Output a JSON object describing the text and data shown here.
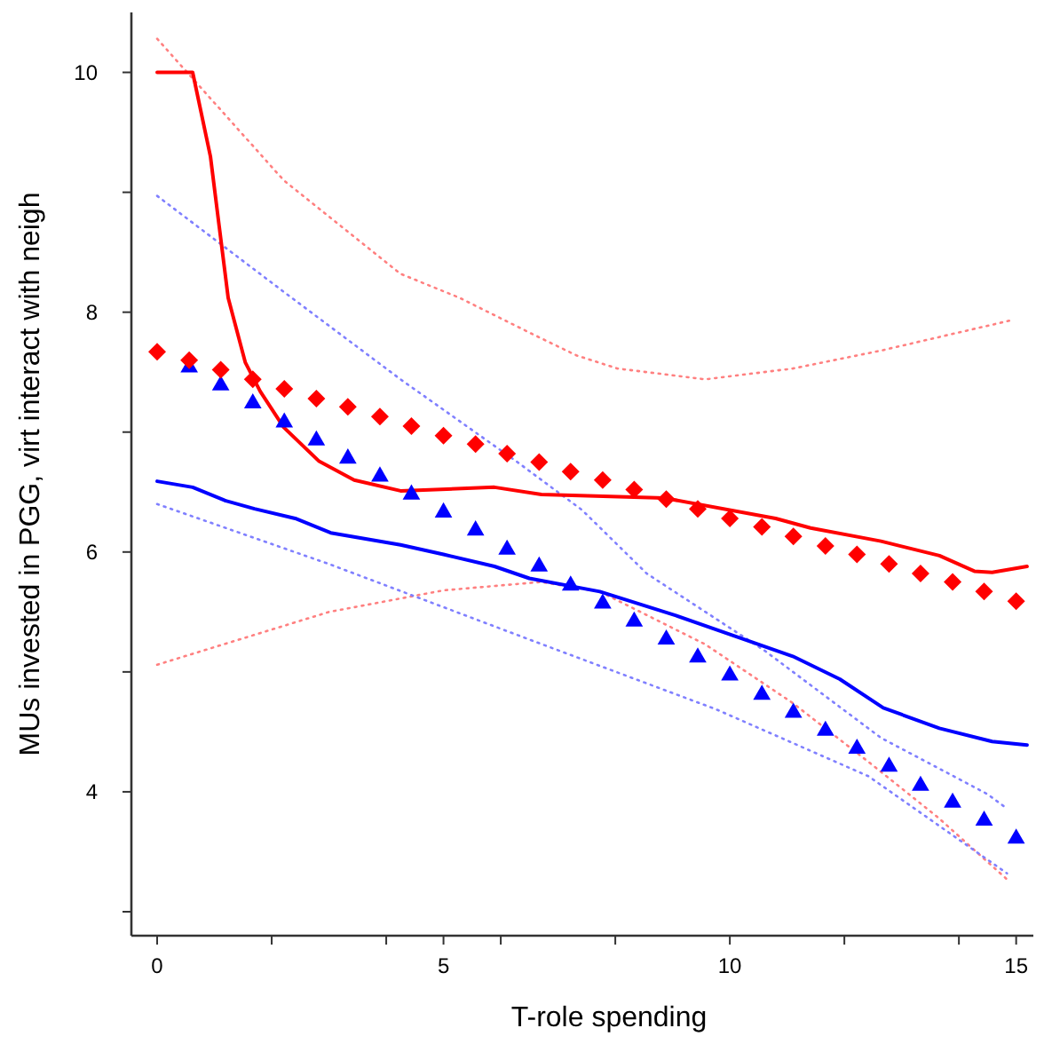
{
  "chart_data": {
    "type": "line",
    "xlabel": "T-role spending",
    "ylabel": "MUs invested in PGG, virt interact with neigh",
    "xlim": [
      -0.45,
      15.3
    ],
    "ylim": [
      2.8,
      10.5
    ],
    "xticks": [
      {
        "value": 0,
        "label": "0"
      },
      {
        "value": 2,
        "label": null
      },
      {
        "value": 4,
        "label": null
      },
      {
        "value": 5,
        "label": "5"
      },
      {
        "value": 6,
        "label": null
      },
      {
        "value": 8,
        "label": null
      },
      {
        "value": 10,
        "label": "10"
      },
      {
        "value": 12,
        "label": null
      },
      {
        "value": 14,
        "label": null
      },
      {
        "value": 15,
        "label": "15"
      }
    ],
    "yticks": [
      {
        "value": 3,
        "label": null
      },
      {
        "value": 4,
        "label": "4"
      },
      {
        "value": 5,
        "label": null
      },
      {
        "value": 6,
        "label": "6"
      },
      {
        "value": 7,
        "label": null
      },
      {
        "value": 8,
        "label": "8"
      },
      {
        "value": 9,
        "label": null
      },
      {
        "value": 10,
        "label": "10"
      }
    ],
    "grid": false,
    "series": [
      {
        "color": "#ff8080",
        "line_style": "dotted",
        "marker": "none",
        "x": [
          0,
          2.21,
          4.25,
          5.28,
          6.5,
          7.32,
          8.04,
          9.57,
          11.1,
          12.64,
          14.89
        ],
        "values": [
          10.28,
          9.1,
          8.32,
          8.12,
          7.83,
          7.64,
          7.53,
          7.44,
          7.53,
          7.68,
          7.93
        ]
      },
      {
        "color": "#ff8080",
        "line_style": "dotted",
        "marker": "none",
        "x": [
          0,
          3,
          5,
          6.7,
          7.73,
          9.57,
          11.1,
          12.42,
          13.65,
          14.84
        ],
        "values": [
          5.06,
          5.5,
          5.68,
          5.75,
          5.67,
          5.23,
          4.74,
          4.25,
          3.78,
          3.27
        ]
      },
      {
        "color": "#8080ff",
        "line_style": "dotted",
        "marker": "none",
        "x": [
          0,
          2.21,
          4.25,
          6.29,
          7.42,
          8.55,
          10.6,
          12.64,
          14.5,
          14.84
        ],
        "values": [
          8.97,
          8.17,
          7.44,
          6.75,
          6.35,
          5.82,
          5.18,
          4.45,
          3.98,
          3.86
        ]
      },
      {
        "color": "#8080ff",
        "line_style": "dotted",
        "marker": "none",
        "x": [
          0,
          3,
          6.5,
          9.75,
          12.42,
          14.84
        ],
        "values": [
          6.4,
          5.9,
          5.27,
          4.69,
          4.13,
          3.32
        ]
      },
      {
        "color": "#ff0000",
        "line_style": "solid",
        "marker": "none",
        "x": [
          0,
          0.62,
          0.93,
          1.24,
          1.54,
          1.8,
          2.21,
          2.82,
          3.44,
          4.25,
          5.89,
          6.71,
          8.86,
          10.8,
          11.41,
          12.64,
          13.66,
          14.27,
          14.58,
          15.19
        ],
        "values": [
          10,
          10,
          9.3,
          8.12,
          7.58,
          7.34,
          7.04,
          6.76,
          6.6,
          6.51,
          6.54,
          6.48,
          6.45,
          6.28,
          6.2,
          6.09,
          5.97,
          5.84,
          5.83,
          5.88
        ]
      },
      {
        "color": "#0000ff",
        "line_style": "solid",
        "marker": "none",
        "x": [
          0,
          0.62,
          1.18,
          1.7,
          2.41,
          3.03,
          4.25,
          5,
          5.89,
          6.5,
          7.73,
          9.06,
          10.08,
          11.1,
          11.92,
          12.68,
          13.66,
          14.58,
          15.19
        ],
        "values": [
          6.59,
          6.54,
          6.43,
          6.36,
          6.28,
          6.16,
          6.06,
          5.98,
          5.88,
          5.78,
          5.67,
          5.47,
          5.3,
          5.13,
          4.94,
          4.7,
          4.53,
          4.42,
          4.39
        ]
      },
      {
        "type": "scatter",
        "color": "#0000ff",
        "marker": "triangle",
        "x": [
          0.56,
          1.11,
          1.67,
          2.22,
          2.78,
          3.33,
          3.89,
          4.44,
          5,
          5.56,
          6.11,
          6.67,
          7.22,
          7.78,
          8.33,
          8.89,
          9.44,
          10,
          10.56,
          11.11,
          11.67,
          12.22,
          12.78,
          13.33,
          13.89,
          14.44,
          15
        ],
        "values": [
          7.54,
          7.39,
          7.24,
          7.08,
          6.93,
          6.78,
          6.63,
          6.48,
          6.33,
          6.18,
          6.02,
          5.88,
          5.72,
          5.57,
          5.42,
          5.27,
          5.12,
          4.97,
          4.81,
          4.66,
          4.51,
          4.36,
          4.21,
          4.05,
          3.91,
          3.76,
          3.61
        ]
      },
      {
        "type": "scatter",
        "color": "#ff0000",
        "marker": "diamond",
        "x": [
          0,
          0.56,
          1.11,
          1.67,
          2.22,
          2.78,
          3.33,
          3.89,
          4.44,
          5,
          5.56,
          6.11,
          6.67,
          7.22,
          7.78,
          8.33,
          8.89,
          9.44,
          10,
          10.56,
          11.11,
          11.67,
          12.22,
          12.78,
          13.33,
          13.89,
          14.44,
          15
        ],
        "values": [
          7.67,
          7.6,
          7.52,
          7.44,
          7.36,
          7.28,
          7.21,
          7.13,
          7.05,
          6.97,
          6.9,
          6.82,
          6.75,
          6.67,
          6.6,
          6.52,
          6.44,
          6.36,
          6.28,
          6.21,
          6.13,
          6.05,
          5.98,
          5.9,
          5.82,
          5.75,
          5.67,
          5.59
        ]
      }
    ]
  }
}
